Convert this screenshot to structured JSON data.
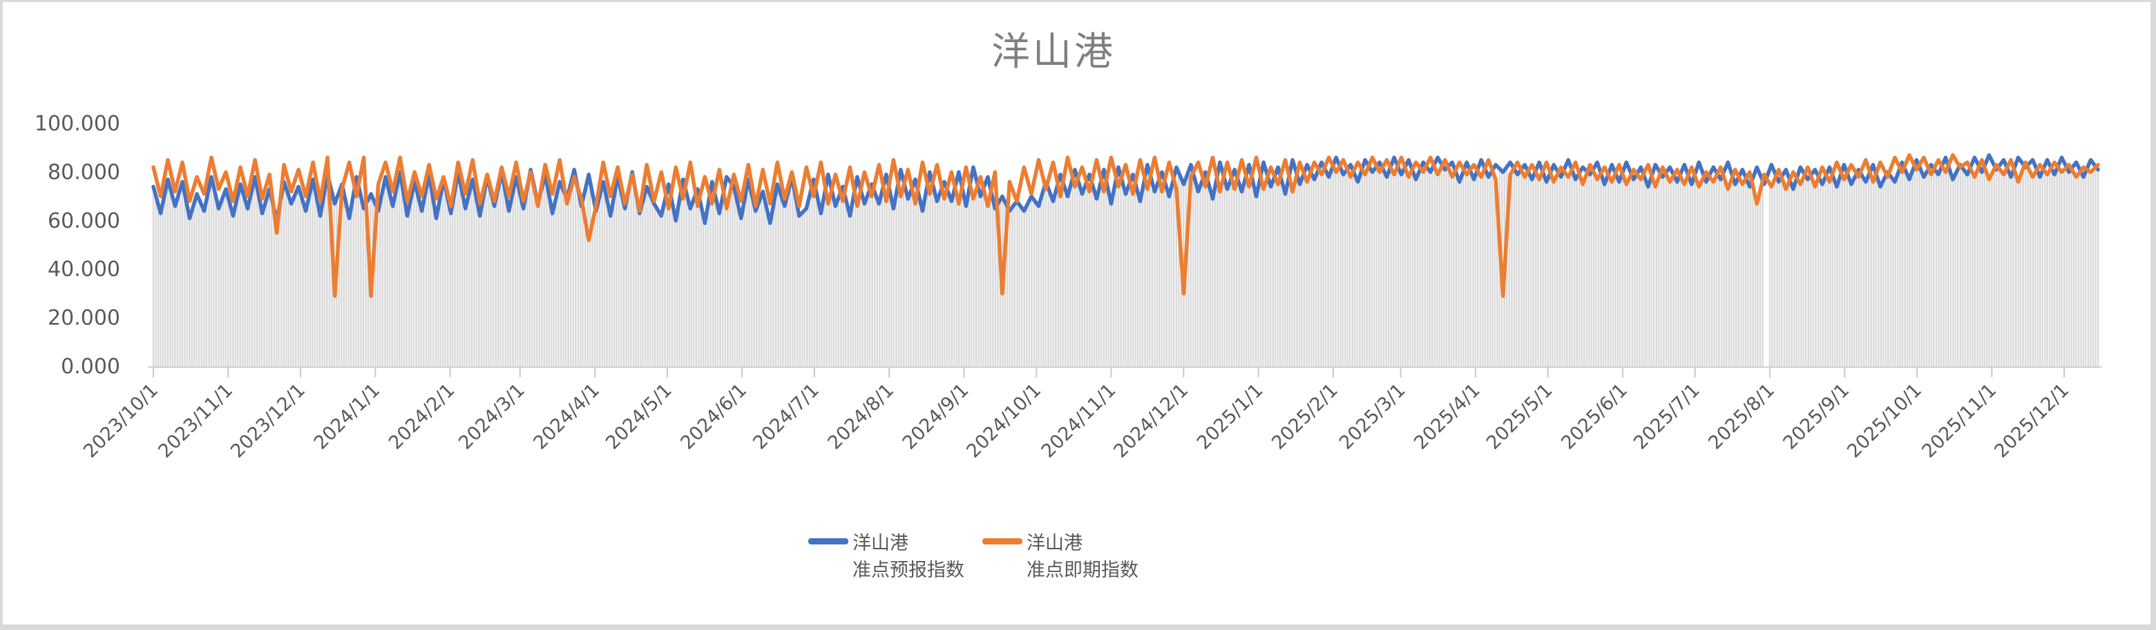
{
  "frame": {
    "background": "#ffffff",
    "border_color": "#d9d9d9"
  },
  "title": {
    "text": "洋山港",
    "color": "#7f7f7f"
  },
  "legend": {
    "position": "bottom-center",
    "items": [
      {
        "label_line1": "洋山港",
        "label_line2": "准点预报指数",
        "color": "#4472c4"
      },
      {
        "label_line1": "洋山港",
        "label_line2": "准点即期指数",
        "color": "#ed7d31"
      }
    ]
  },
  "chart_data": {
    "type": "line",
    "title": "洋山港",
    "xlabel": "",
    "ylabel": "",
    "ylim": [
      0,
      100
    ],
    "y_tick_step": 20,
    "y_tick_labels": [
      "0.000",
      "20.000",
      "40.000",
      "60.000",
      "80.000",
      "100.000"
    ],
    "grid": false,
    "legend_position": "bottom",
    "axis_color": "#d0cece",
    "tick_color": "#c9c9c9",
    "label_color": "#595959",
    "x_start": "2023/10/1",
    "x_end": "2025/12/15",
    "sample_interval_days": 3,
    "x_tick_labels": [
      "2023/10/1",
      "2023/11/1",
      "2023/12/1",
      "2024/1/1",
      "2024/2/1",
      "2024/3/1",
      "2024/4/1",
      "2024/5/1",
      "2024/6/1",
      "2024/7/1",
      "2024/8/1",
      "2024/9/1",
      "2024/10/1",
      "2024/11/1",
      "2024/12/1",
      "2025/1/1",
      "2025/2/1",
      "2025/3/1",
      "2025/4/1",
      "2025/5/1",
      "2025/6/1",
      "2025/7/1",
      "2025/8/1",
      "2025/9/1",
      "2025/10/1",
      "2025/11/1",
      "2025/12/1"
    ],
    "background_bars": {
      "color": "#d9d9d9",
      "description": "thin light-gray daily columns filling the area up to the lower of the two lines",
      "gap_dates": [
        "2025/7/30",
        "2025/7/31"
      ]
    },
    "series": [
      {
        "name": "洋山港准点预报指数",
        "color": "#4472c4",
        "values": [
          74,
          63,
          77,
          66,
          76,
          61,
          71,
          64,
          78,
          65,
          73,
          62,
          75,
          65,
          78,
          63,
          73,
          60,
          76,
          67,
          74,
          64,
          77,
          62,
          79,
          67,
          75,
          61,
          78,
          65,
          71,
          64,
          78,
          66,
          80,
          62,
          76,
          64,
          79,
          61,
          77,
          63,
          80,
          65,
          77,
          62,
          78,
          66,
          80,
          64,
          78,
          65,
          81,
          67,
          79,
          63,
          76,
          69,
          81,
          66,
          79,
          64,
          76,
          62,
          78,
          65,
          80,
          63,
          74,
          67,
          62,
          75,
          60,
          77,
          65,
          73,
          59,
          76,
          63,
          78,
          74,
          61,
          77,
          64,
          72,
          59,
          75,
          66,
          78,
          62,
          65,
          77,
          63,
          79,
          66,
          74,
          62,
          78,
          67,
          75,
          67,
          79,
          65,
          81,
          69,
          77,
          64,
          80,
          68,
          76,
          68,
          80,
          66,
          82,
          70,
          78,
          65,
          70,
          64,
          68,
          64,
          70,
          66,
          76,
          68,
          79,
          70,
          81,
          71,
          79,
          69,
          81,
          67,
          82,
          71,
          79,
          68,
          83,
          72,
          80,
          70,
          82,
          75,
          83,
          72,
          80,
          69,
          84,
          73,
          81,
          72,
          83,
          70,
          84,
          74,
          82,
          71,
          85,
          75,
          83,
          77,
          84,
          78,
          86,
          79,
          83,
          76,
          85,
          80,
          84,
          78,
          86,
          79,
          85,
          77,
          84,
          80,
          86,
          81,
          84,
          76,
          84,
          77,
          85,
          78,
          83,
          80,
          84,
          79,
          83,
          77,
          84,
          76,
          83,
          78,
          85,
          77,
          82,
          79,
          84,
          75,
          83,
          76,
          84,
          77,
          82,
          74,
          83,
          78,
          82,
          76,
          83,
          75,
          84,
          76,
          82,
          77,
          84,
          75,
          81,
          74,
          82,
          75,
          83,
          76,
          81,
          73,
          82,
          77,
          81,
          75,
          82,
          74,
          83,
          75,
          81,
          76,
          83,
          74,
          80,
          76,
          84,
          77,
          85,
          78,
          83,
          79,
          86,
          77,
          83,
          79,
          86,
          80,
          87,
          81,
          85,
          78,
          86,
          82,
          85,
          78,
          85,
          79,
          86,
          80,
          84,
          78,
          85,
          81
        ]
      },
      {
        "name": "洋山港准点即期指数",
        "color": "#ed7d31",
        "values": [
          82,
          70,
          85,
          72,
          84,
          68,
          78,
          71,
          86,
          73,
          80,
          68,
          82,
          70,
          85,
          69,
          79,
          55,
          83,
          72,
          81,
          70,
          84,
          68,
          86,
          29,
          73,
          84,
          70,
          86,
          29,
          75,
          84,
          72,
          86,
          68,
          80,
          70,
          83,
          69,
          78,
          66,
          84,
          71,
          85,
          67,
          79,
          68,
          82,
          70,
          84,
          68,
          80,
          66,
          83,
          71,
          85,
          67,
          78,
          69,
          52,
          66,
          84,
          70,
          82,
          67,
          79,
          64,
          83,
          68,
          80,
          65,
          82,
          69,
          84,
          66,
          78,
          67,
          81,
          65,
          79,
          68,
          83,
          66,
          81,
          67,
          84,
          69,
          80,
          66,
          82,
          70,
          84,
          67,
          79,
          68,
          82,
          66,
          80,
          70,
          83,
          68,
          85,
          70,
          81,
          67,
          84,
          71,
          83,
          69,
          80,
          67,
          82,
          69,
          78,
          66,
          80,
          30,
          76,
          68,
          82,
          71,
          85,
          73,
          84,
          70,
          86,
          74,
          82,
          72,
          85,
          72,
          86,
          74,
          83,
          71,
          85,
          73,
          86,
          72,
          84,
          73,
          30,
          78,
          84,
          74,
          86,
          72,
          84,
          73,
          85,
          74,
          86,
          73,
          82,
          75,
          85,
          72,
          84,
          76,
          84,
          79,
          86,
          80,
          85,
          78,
          84,
          79,
          86,
          80,
          85,
          79,
          86,
          78,
          84,
          80,
          86,
          79,
          85,
          78,
          84,
          79,
          83,
          78,
          85,
          77,
          29,
          79,
          84,
          78,
          83,
          77,
          84,
          76,
          82,
          78,
          84,
          75,
          83,
          77,
          82,
          76,
          83,
          75,
          81,
          77,
          83,
          74,
          82,
          76,
          81,
          75,
          82,
          74,
          80,
          76,
          82,
          73,
          81,
          75,
          80,
          67,
          79,
          74,
          81,
          73,
          80,
          75,
          82,
          74,
          82,
          76,
          84,
          77,
          83,
          78,
          85,
          76,
          84,
          78,
          86,
          80,
          87,
          81,
          86,
          79,
          85,
          80,
          87,
          82,
          84,
          78,
          85,
          77,
          83,
          79,
          85,
          76,
          84,
          78,
          83,
          79,
          84,
          80,
          83,
          78,
          82,
          80,
          83
        ]
      }
    ],
    "notable_dips": [
      {
        "series": "洋山港准点即期指数",
        "date": "2023/12/15",
        "value": 29
      },
      {
        "series": "洋山港准点即期指数",
        "date": "2023/12/30",
        "value": 29
      },
      {
        "series": "洋山港准点即期指数",
        "date": "2024/9/16",
        "value": 30
      },
      {
        "series": "洋山港准点即期指数",
        "date": "2024/11/30",
        "value": 30
      },
      {
        "series": "洋山港准点即期指数",
        "date": "2025/4/11",
        "value": 29
      }
    ]
  }
}
